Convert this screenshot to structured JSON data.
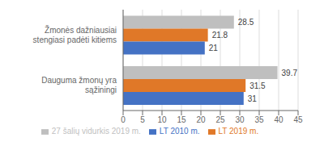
{
  "chart_data": {
    "type": "bar",
    "orientation": "horizontal",
    "categories": [
      "Žmonės dažniausiai stengiasi padėti kitiems",
      "Dauguma žmonų yra sąžiningi"
    ],
    "series": [
      {
        "name": "27 šalių vidurkis 2019 m.",
        "color": "#bfbfbf",
        "values": [
          28.5,
          39.7
        ]
      },
      {
        "name": "LT 2019 m.",
        "color": "#e07828",
        "values": [
          21.8,
          31.5
        ]
      },
      {
        "name": "LT 2010 m.",
        "color": "#4472c4",
        "values": [
          21,
          31
        ]
      }
    ],
    "xlim": [
      0,
      45
    ],
    "xticks": [
      0,
      5,
      10,
      15,
      20,
      25,
      30,
      35,
      40,
      45
    ],
    "grid": true,
    "data_labels": true,
    "legend": "bottom"
  }
}
